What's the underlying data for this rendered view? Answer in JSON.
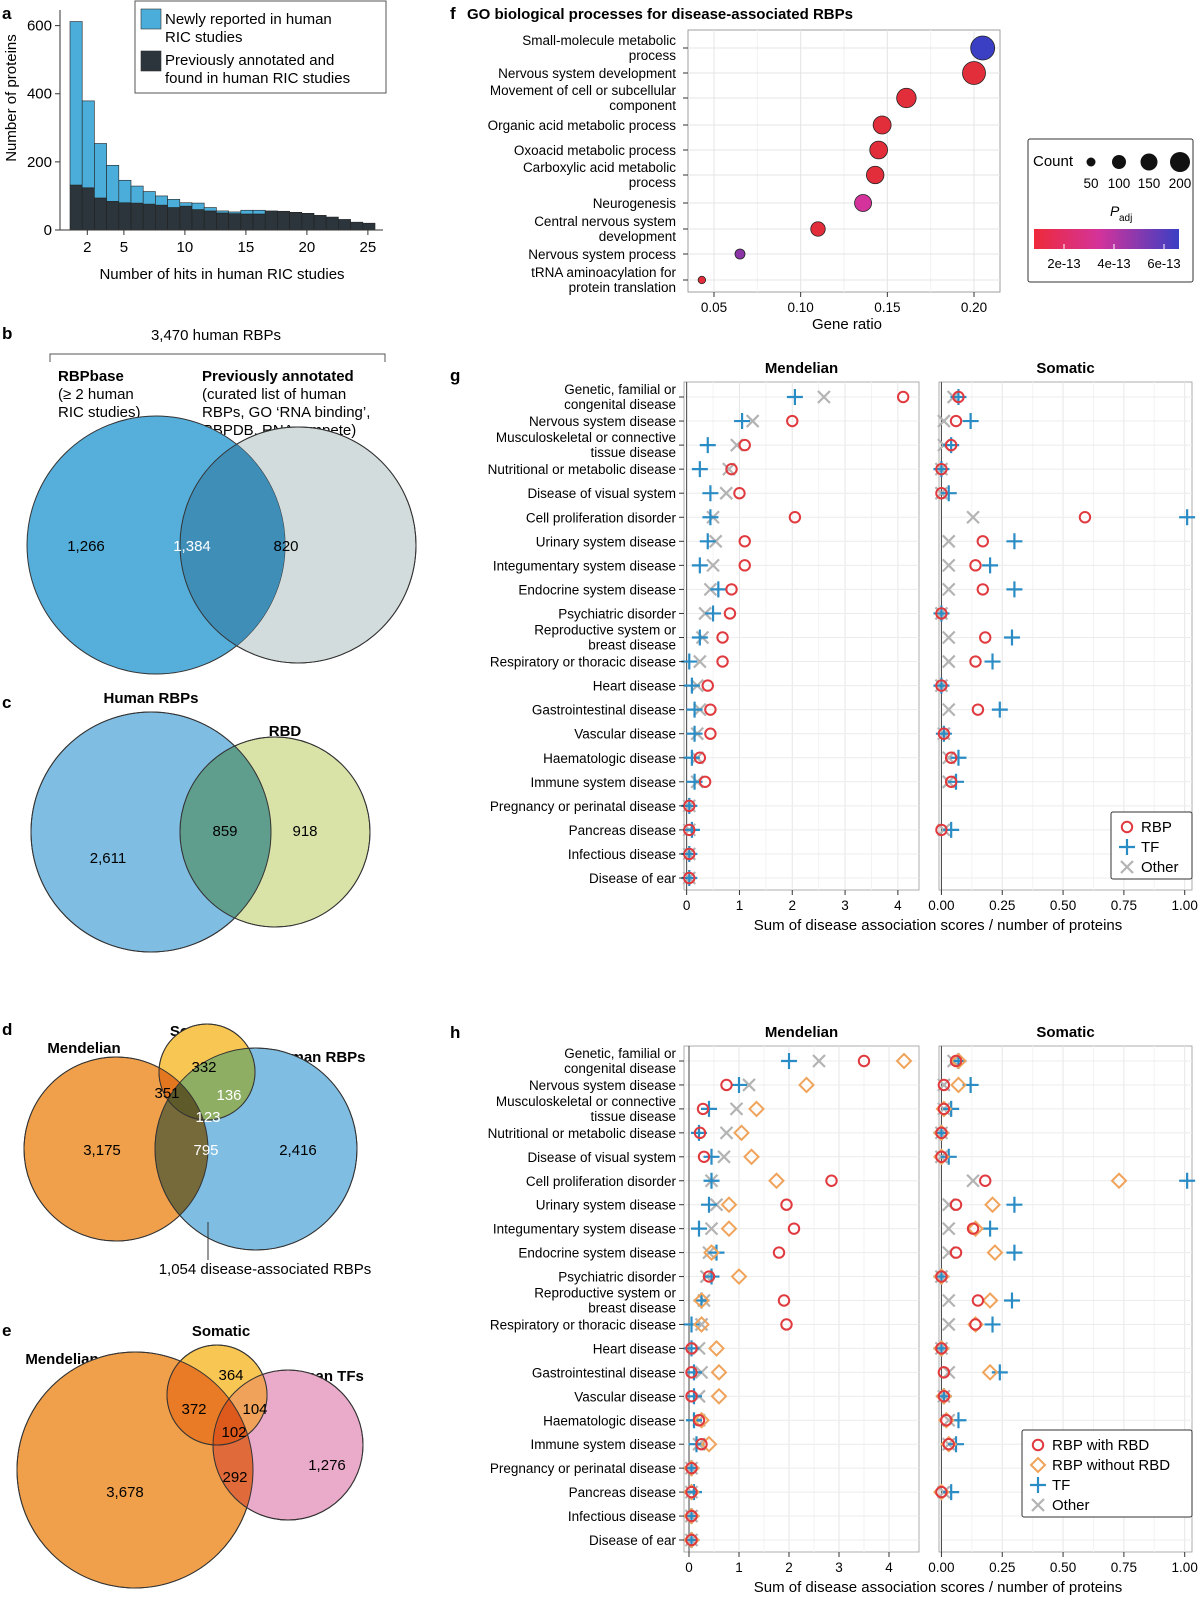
{
  "panels": {
    "a": "a",
    "b": "b",
    "c": "c",
    "d": "d",
    "e": "e",
    "f": "f",
    "g": "g",
    "h": "h"
  },
  "colors": {
    "new_rbp": "#4badd9",
    "prev_rbp": "#2b353b",
    "venn_blue": "#56aedb",
    "venn_gray": "#d3dcdc",
    "venn_overlap": "#3f8eb8",
    "human_rbps": "#7fbde2",
    "rbd": "#d9e3a7",
    "overlap_c": "#5f9e8d",
    "mendelian": "#f0a04b",
    "somatic": "#f7c653",
    "tfs": "#eaaac9",
    "rbp_marker": "#e0393e",
    "tf_marker": "#2a8cc5",
    "other_marker": "#b3b3b3",
    "rbd_less_marker": "#f0a35a"
  },
  "chart_data": [
    {
      "id": "a",
      "type": "bar",
      "stacked": true,
      "xlabel": "Number of hits in human RIC studies",
      "ylabel": "Number of proteins",
      "xticks": [
        "2",
        "5",
        "10",
        "15",
        "20",
        "25"
      ],
      "yticks": [
        "0",
        "200",
        "400",
        "600"
      ],
      "ylim": [
        0,
        620
      ],
      "x": [
        1,
        2,
        3,
        4,
        5,
        6,
        7,
        8,
        9,
        10,
        11,
        12,
        13,
        14,
        15,
        16,
        17,
        18,
        19,
        20,
        21,
        22,
        23,
        24,
        25
      ],
      "series": [
        {
          "name": "Previously annotated and found in human RIC studies",
          "values": [
            132,
            124,
            94,
            84,
            80,
            79,
            76,
            73,
            66,
            70,
            60,
            56,
            50,
            48,
            47,
            47,
            56,
            55,
            52,
            49,
            43,
            38,
            31,
            23,
            20
          ]
        },
        {
          "name": "Newly reported in human RIC studies",
          "values": [
            480,
            255,
            160,
            106,
            66,
            50,
            37,
            27,
            24,
            10,
            19,
            10,
            6,
            5,
            11,
            11,
            0,
            0,
            0,
            0,
            0,
            0,
            0,
            0,
            0
          ]
        }
      ],
      "legend": [
        "Newly reported in human RIC studies",
        "Previously annotated and found in human RIC studies"
      ]
    },
    {
      "id": "f",
      "type": "scatter",
      "title": "GO biological processes for disease-associated RBPs",
      "xlabel": "Gene ratio",
      "xticks": [
        "0.05",
        "0.10",
        "0.15",
        "0.20"
      ],
      "xlim": [
        0.035,
        0.215
      ],
      "categories": [
        [
          "Small-molecule metabolic",
          "process"
        ],
        [
          "Nervous system development"
        ],
        [
          "Movement of cell or subcellular",
          "component"
        ],
        [
          "Organic acid metabolic process"
        ],
        [
          "Oxoacid metabolic process"
        ],
        [
          "Carboxylic acid metabolic",
          "process"
        ],
        [
          "Neurogenesis"
        ],
        [
          "Central nervous system",
          "development"
        ],
        [
          "Nervous system process"
        ],
        [
          "tRNA aminoacylation for",
          "protein translation"
        ]
      ],
      "values": [
        0.205,
        0.2,
        0.161,
        0.147,
        0.145,
        0.143,
        0.136,
        0.11,
        0.065,
        0.043
      ],
      "counts": [
        210,
        200,
        165,
        150,
        148,
        145,
        140,
        115,
        70,
        45
      ],
      "padj_colors": [
        "#3a3fc4",
        "#e22d3a",
        "#e22d3a",
        "#e22d3a",
        "#e22d3a",
        "#e22d3a",
        "#d3339a",
        "#e22d3a",
        "#8a34a8",
        "#e22d3a"
      ],
      "count_legend": {
        "title": "Count",
        "labels": [
          "50",
          "100",
          "150",
          "200"
        ]
      },
      "padj_legend": {
        "title": "P",
        "sub": "adj",
        "ticks": [
          "2e-13",
          "4e-13",
          "6e-13"
        ]
      }
    },
    {
      "id": "g",
      "type": "scatter",
      "xlabel": "Sum of disease association scores / number of proteins",
      "facets": [
        {
          "title": "Mendelian",
          "xlim": [
            -0.05,
            4.4
          ],
          "xticks": [
            "0",
            "1",
            "2",
            "3",
            "4"
          ],
          "tickvals": [
            0,
            1,
            2,
            3,
            4
          ]
        },
        {
          "title": "Somatic",
          "xlim": [
            -0.01,
            1.03
          ],
          "xticks": [
            "0.00",
            "0.25",
            "0.50",
            "0.75",
            "1.00"
          ],
          "tickvals": [
            0,
            0.25,
            0.5,
            0.75,
            1
          ]
        }
      ],
      "categories": [
        [
          "Genetic, familial or",
          "congenital disease"
        ],
        [
          "Nervous system disease"
        ],
        [
          "Musculoskeletal or connective",
          "tissue disease"
        ],
        [
          "Nutritional or metabolic disease"
        ],
        [
          "Disease of visual system"
        ],
        [
          "Cell proliferation disorder"
        ],
        [
          "Urinary system disease"
        ],
        [
          "Integumentary system disease"
        ],
        [
          "Endocrine system disease"
        ],
        [
          "Psychiatric disorder"
        ],
        [
          "Reproductive system or",
          "breast disease"
        ],
        [
          "Respiratory or thoracic disease"
        ],
        [
          "Heart disease"
        ],
        [
          "Gastrointestinal disease"
        ],
        [
          "Vascular disease"
        ],
        [
          "Haematologic disease"
        ],
        [
          "Immune system disease"
        ],
        [
          "Pregnancy or perinatal disease"
        ],
        [
          "Pancreas disease"
        ],
        [
          "Infectious disease"
        ],
        [
          "Disease of ear"
        ]
      ],
      "series": [
        {
          "name": "RBP",
          "marker": "circle",
          "color": "#e0393e",
          "mendelian": [
            4.1,
            2.0,
            1.1,
            0.85,
            1.0,
            2.05,
            1.1,
            1.1,
            0.85,
            0.82,
            0.68,
            0.68,
            0.4,
            0.45,
            0.45,
            0.25,
            0.35,
            0.05,
            0.05,
            0.05,
            0.05
          ],
          "somatic": [
            0.07,
            0.06,
            0.04,
            0.0,
            0.0,
            0.59,
            0.17,
            0.14,
            0.17,
            0.0,
            0.18,
            0.14,
            0.0,
            0.15,
            0.01,
            0.04,
            0.04,
            null,
            0.0,
            null,
            null
          ]
        },
        {
          "name": "TF",
          "marker": "plus",
          "color": "#2a8cc5",
          "mendelian": [
            2.05,
            1.05,
            0.4,
            0.25,
            0.45,
            0.45,
            0.4,
            0.25,
            0.6,
            0.5,
            0.25,
            0.05,
            0.1,
            0.15,
            0.15,
            0.1,
            0.15,
            0.05,
            0.1,
            0.05,
            0.05
          ],
          "somatic": [
            0.07,
            0.12,
            0.04,
            0.0,
            0.03,
            1.01,
            0.3,
            0.2,
            0.3,
            0.0,
            0.29,
            0.21,
            0.0,
            0.24,
            0.01,
            0.07,
            0.06,
            null,
            0.04,
            null,
            null
          ]
        },
        {
          "name": "Other",
          "marker": "x",
          "color": "#b3b3b3",
          "mendelian": [
            2.6,
            1.25,
            0.95,
            0.8,
            0.75,
            0.5,
            0.55,
            0.5,
            0.45,
            0.35,
            0.3,
            0.25,
            0.2,
            0.25,
            0.2,
            0.2,
            0.2,
            0.05,
            0.05,
            0.05,
            0.05
          ],
          "somatic": [
            0.05,
            0.01,
            0.01,
            0.0,
            0.0,
            0.13,
            0.03,
            0.03,
            0.03,
            0.0,
            0.03,
            0.03,
            0.0,
            0.03,
            0.01,
            0.03,
            0.03,
            null,
            0.01,
            null,
            null
          ]
        }
      ],
      "legend": [
        "RBP",
        "TF",
        "Other"
      ]
    },
    {
      "id": "h",
      "type": "scatter",
      "xlabel": "Sum of disease association scores / number of proteins",
      "facets": [
        {
          "title": "Mendelian",
          "xlim": [
            -0.1,
            4.6
          ],
          "xticks": [
            "0",
            "1",
            "2",
            "3",
            "4"
          ],
          "tickvals": [
            0,
            1,
            2,
            3,
            4
          ]
        },
        {
          "title": "Somatic",
          "xlim": [
            -0.01,
            1.03
          ],
          "xticks": [
            "0.00",
            "0.25",
            "0.50",
            "0.75",
            "1.00"
          ],
          "tickvals": [
            0,
            0.25,
            0.5,
            0.75,
            1
          ]
        }
      ],
      "categories": [
        [
          "Genetic, familial or",
          "congenital disease"
        ],
        [
          "Nervous system disease"
        ],
        [
          "Musculoskeletal or connective",
          "tissue disease"
        ],
        [
          "Nutritional or metabolic disease"
        ],
        [
          "Disease of visual system"
        ],
        [
          "Cell proliferation disorder"
        ],
        [
          "Urinary system disease"
        ],
        [
          "Integumentary system disease"
        ],
        [
          "Endocrine system disease"
        ],
        [
          "Psychiatric disorder"
        ],
        [
          "Reproductive system or",
          "breast disease"
        ],
        [
          "Respiratory or thoracic disease"
        ],
        [
          "Heart disease"
        ],
        [
          "Gastrointestinal disease"
        ],
        [
          "Vascular disease"
        ],
        [
          "Haematologic disease"
        ],
        [
          "Immune system disease"
        ],
        [
          "Pregnancy or perinatal disease"
        ],
        [
          "Pancreas disease"
        ],
        [
          "Infectious disease"
        ],
        [
          "Disease of ear"
        ]
      ],
      "series": [
        {
          "name": "RBP with RBD",
          "marker": "circle",
          "color": "#e0393e",
          "mendelian": [
            3.5,
            0.75,
            0.28,
            0.22,
            0.3,
            2.85,
            1.95,
            2.1,
            1.8,
            0.4,
            1.9,
            1.95,
            0.05,
            0.05,
            0.05,
            0.2,
            0.25,
            0.05,
            0.05,
            0.05,
            0.05
          ],
          "somatic": [
            0.06,
            0.01,
            0.01,
            0.0,
            0.0,
            0.18,
            0.06,
            0.13,
            0.06,
            0.0,
            0.15,
            0.14,
            0.0,
            0.01,
            0.01,
            0.02,
            0.03,
            null,
            0.0,
            null,
            null
          ]
        },
        {
          "name": "RBP without RBD",
          "marker": "diamond",
          "color": "#f0a35a",
          "mendelian": [
            4.3,
            2.35,
            1.35,
            1.05,
            1.25,
            1.75,
            0.8,
            0.8,
            0.45,
            1.0,
            0.25,
            0.25,
            0.55,
            0.6,
            0.6,
            0.25,
            0.4,
            0.05,
            0.05,
            0.05,
            0.05
          ],
          "somatic": [
            0.07,
            0.07,
            0.01,
            0.0,
            0.0,
            0.73,
            0.21,
            0.14,
            0.22,
            0.0,
            0.2,
            0.14,
            0.0,
            0.2,
            0.01,
            0.02,
            0.03,
            null,
            0.0,
            null,
            null
          ]
        },
        {
          "name": "TF",
          "marker": "plus",
          "color": "#2a8cc5",
          "mendelian": [
            2.0,
            1.0,
            0.4,
            0.2,
            0.45,
            0.45,
            0.4,
            0.2,
            0.55,
            0.45,
            0.25,
            0.05,
            0.05,
            0.1,
            0.1,
            0.1,
            0.15,
            0.05,
            0.1,
            0.05,
            0.05
          ],
          "somatic": [
            0.07,
            0.12,
            0.04,
            0.0,
            0.03,
            1.01,
            0.3,
            0.2,
            0.3,
            0.0,
            0.29,
            0.21,
            0.0,
            0.24,
            0.01,
            0.07,
            0.06,
            null,
            0.04,
            null,
            null
          ]
        },
        {
          "name": "Other",
          "marker": "x",
          "color": "#b3b3b3",
          "mendelian": [
            2.6,
            1.2,
            0.95,
            0.75,
            0.7,
            0.45,
            0.55,
            0.45,
            0.4,
            0.35,
            0.3,
            0.25,
            0.2,
            0.25,
            0.2,
            0.2,
            0.2,
            0.05,
            0.05,
            0.05,
            0.05
          ],
          "somatic": [
            0.05,
            0.01,
            0.01,
            0.0,
            0.0,
            0.13,
            0.03,
            0.03,
            0.03,
            0.0,
            0.03,
            0.03,
            0.0,
            0.03,
            0.01,
            0.03,
            0.03,
            null,
            0.01,
            null,
            null
          ]
        }
      ],
      "legend": [
        "RBP with RBD",
        "RBP without RBD",
        "TF",
        "Other"
      ]
    }
  ],
  "venn_b": {
    "header": "3,470 human RBPs",
    "left_title": "RBPbase",
    "left_sub": [
      "(≥ 2 human",
      "RIC studies)"
    ],
    "right_title": "Previously annotated",
    "right_sub": [
      "(curated list of human",
      "RBPs, GO ‘RNA binding’,",
      "RBPDB, RNAcompete)"
    ],
    "left_only": "1,266",
    "both": "1,384",
    "right_only": "820"
  },
  "venn_c": {
    "left_title": "Human RBPs",
    "right_title": "RBD",
    "left_only": "2,611",
    "both": "859",
    "right_only": "918"
  },
  "venn_d": {
    "mendelian_title": "Mendelian",
    "somatic_title": "Somatic",
    "rbp_title": "Human RBPs",
    "somatic_only": "332",
    "mend_som": "351",
    "som_rbp": "136",
    "all_three": "123",
    "mendelian_only": "3,175",
    "mend_rbp": "795",
    "rbp_only": "2,416",
    "note": "1,054 disease-associated RBPs"
  },
  "venn_e": {
    "mendelian_title": "Mendelian",
    "somatic_title": "Somatic",
    "tf_title": "Human TFs",
    "somatic_only": "364",
    "mend_som": "372",
    "som_tf": "104",
    "all_three": "102",
    "mendelian_only": "3,678",
    "mend_tf": "292",
    "tf_only": "1,276"
  }
}
